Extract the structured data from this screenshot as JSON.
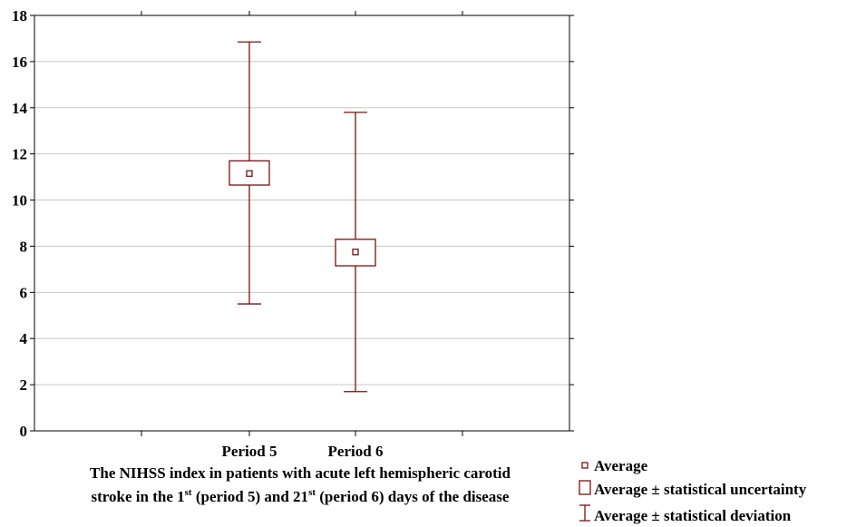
{
  "chart_data": {
    "type": "box",
    "categories": [
      "Period 5",
      "Period 6"
    ],
    "ylim": [
      0,
      18
    ],
    "yticks": [
      "0",
      "2",
      "4",
      "6",
      "8",
      "10",
      "12",
      "14",
      "16",
      "18"
    ],
    "grid": true,
    "series": [
      {
        "category": "Period 5",
        "average": 11.15,
        "uncertainty_low": 10.65,
        "uncertainty_high": 11.7,
        "deviation_low": 5.5,
        "deviation_high": 16.85
      },
      {
        "category": "Period 6",
        "average": 7.75,
        "uncertainty_low": 7.15,
        "uncertainty_high": 8.3,
        "deviation_low": 1.7,
        "deviation_high": 13.8
      }
    ],
    "caption": {
      "line1": "The NIHSS index in patients with acute left hemispheric carotid",
      "line2_a": "stroke in the 1",
      "line2_sup1": "st",
      "line2_b": " (period 5) and 21",
      "line2_sup2": "st",
      "line2_c": " (period 6) days of the disease"
    },
    "legend": {
      "placement": "bottom-right",
      "entries": [
        "Average",
        "Average ± statistical uncertainty",
        "Average ± statistical deviation"
      ]
    },
    "colors": {
      "series": "#7a1010",
      "grid": "#c8c8c8",
      "axis": "#000000"
    }
  }
}
